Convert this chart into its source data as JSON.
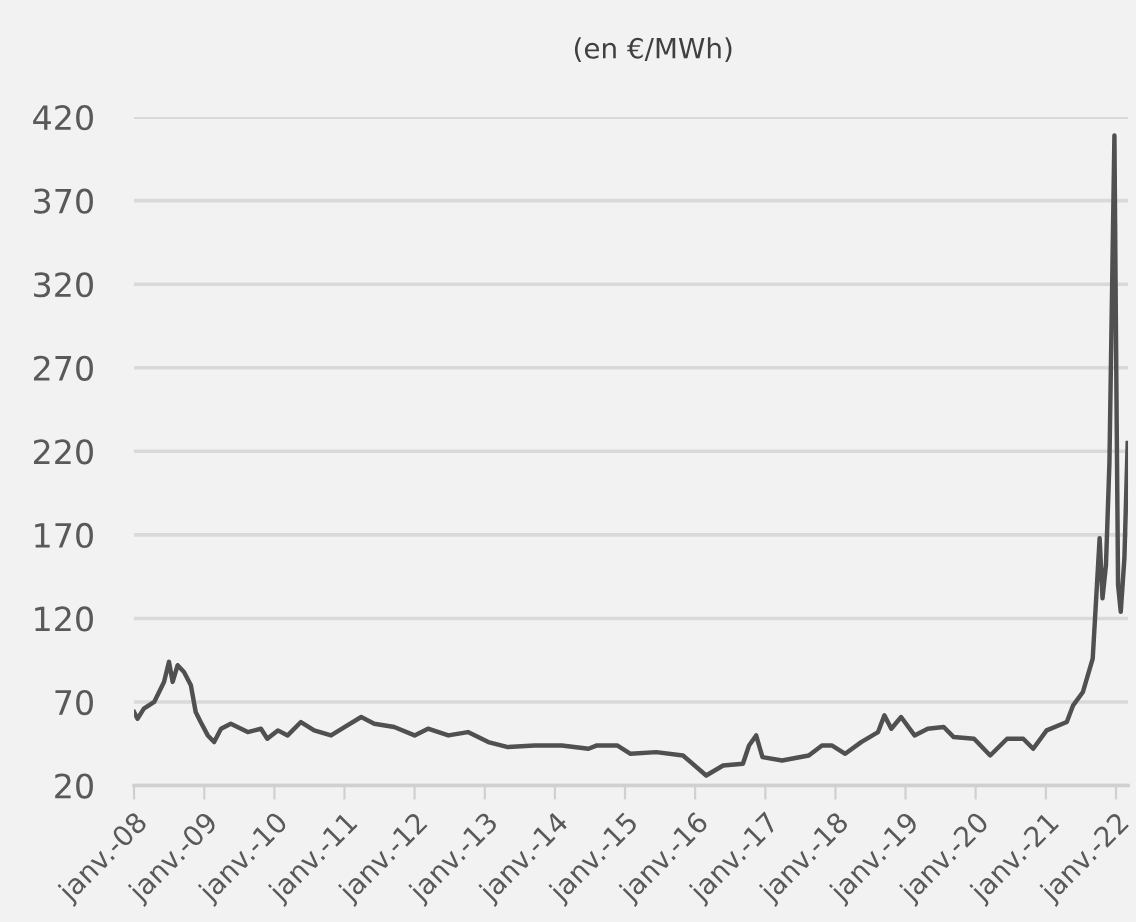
{
  "chart_data": {
    "type": "line",
    "title": "(en €/MWh)",
    "x": [
      "2008-01-01",
      "2008-01-19",
      "2008-02-21",
      "2008-04-15",
      "2008-06-05",
      "2008-07-01",
      "2008-07-20",
      "2008-08-15",
      "2008-09-17",
      "2008-10-23",
      "2008-11-17",
      "2008-12-13",
      "2009-01-19",
      "2009-02-21",
      "2009-03-29",
      "2009-05-19",
      "2009-08-15",
      "2009-10-23",
      "2009-11-25",
      "2010-01-19",
      "2010-03-11",
      "2010-05-19",
      "2010-07-27",
      "2010-10-23",
      "2011-01-01",
      "2011-03-29",
      "2011-06-05",
      "2011-09-17",
      "2012-01-01",
      "2012-03-11",
      "2012-06-25",
      "2012-10-05",
      "2013-01-19",
      "2013-05-01",
      "2013-09-17",
      "2014-02-06",
      "2014-06-25",
      "2014-08-08",
      "2014-11-21",
      "2015-01-30",
      "2015-06-13",
      "2015-10-30",
      "2016-02-28",
      "2016-05-26",
      "2016-09-06",
      "2016-10-08",
      "2016-11-14",
      "2016-12-17",
      "2017-03-29",
      "2017-08-15",
      "2017-10-23",
      "2017-12-13",
      "2018-02-21",
      "2018-05-15",
      "2018-08-11",
      "2018-09-13",
      "2018-10-19",
      "2018-12-09",
      "2019-02-17",
      "2019-04-27",
      "2019-07-19",
      "2019-09-09",
      "2019-12-24",
      "2020-03-17",
      "2020-06-13",
      "2020-09-05",
      "2020-10-27",
      "2021-01-05",
      "2021-04-20",
      "2021-05-23",
      "2021-07-13",
      "2021-09-02",
      "2021-10-08",
      "2021-10-23",
      "2021-11-10",
      "2021-11-28",
      "2021-12-24",
      "2022-01-04",
      "2022-01-12",
      "2022-01-26",
      "2022-02-14",
      "2022-03-03"
    ],
    "series": [
      {
        "color": "#505050",
        "values": [
          64,
          60,
          66,
          70,
          82,
          94,
          82,
          92,
          88,
          80,
          64,
          58,
          50,
          46,
          54,
          57,
          52,
          54,
          48,
          53,
          50,
          58,
          53,
          50,
          55,
          61,
          57,
          55,
          50,
          54,
          50,
          52,
          46,
          43,
          44,
          44,
          42,
          44,
          44,
          39,
          40,
          38,
          26,
          32,
          33,
          44,
          50,
          37,
          35,
          38,
          44,
          44,
          39,
          46,
          52,
          62,
          54,
          61,
          50,
          54,
          55,
          49,
          48,
          38,
          48,
          48,
          42,
          53,
          58,
          68,
          76,
          96,
          168,
          132,
          152,
          213,
          409,
          249,
          140,
          124,
          156,
          225
        ]
      }
    ],
    "xlim": [
      "2008-01-01",
      "2022-03-05"
    ],
    "xticks": [
      {
        "value": "2008-01-01",
        "label": "janv.-08"
      },
      {
        "value": "2009-01-01",
        "label": "janv.-09"
      },
      {
        "value": "2010-01-01",
        "label": "janv.-10"
      },
      {
        "value": "2011-01-01",
        "label": "janv.-11"
      },
      {
        "value": "2012-01-01",
        "label": "janv.-12"
      },
      {
        "value": "2013-01-01",
        "label": "janv.-13"
      },
      {
        "value": "2014-01-01",
        "label": "janv.-14"
      },
      {
        "value": "2015-01-01",
        "label": "janv.-15"
      },
      {
        "value": "2016-01-01",
        "label": "janv.-16"
      },
      {
        "value": "2017-01-01",
        "label": "janv.-17"
      },
      {
        "value": "2018-01-01",
        "label": "janv.-18"
      },
      {
        "value": "2019-01-01",
        "label": "janv.-19"
      },
      {
        "value": "2020-01-01",
        "label": "janv.-20"
      },
      {
        "value": "2021-01-01",
        "label": "janv.-21"
      },
      {
        "value": "2022-01-01",
        "label": "janv.-22"
      }
    ],
    "ylim": [
      20,
      420
    ],
    "yticks": [
      20,
      70,
      120,
      170,
      220,
      270,
      320,
      370,
      420
    ],
    "grid": "y",
    "legend": false,
    "marker": "none",
    "line_style": "solid"
  }
}
